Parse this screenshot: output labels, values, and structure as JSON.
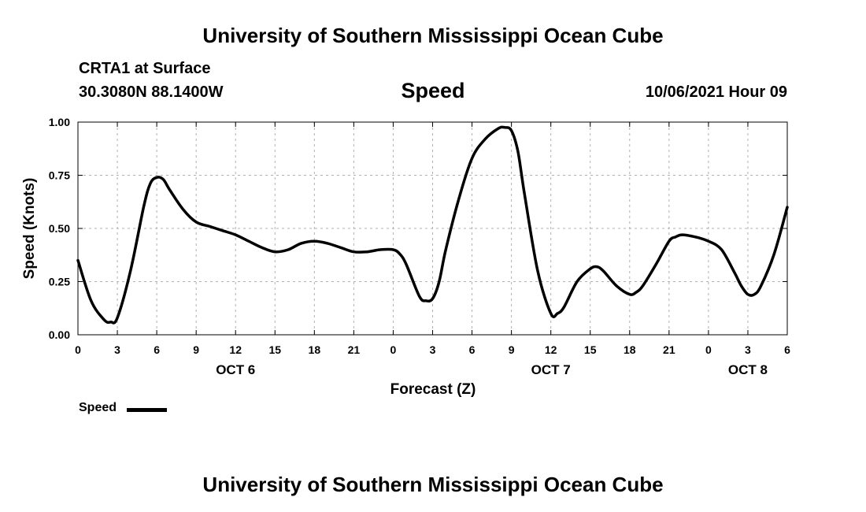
{
  "header": {
    "title": "University of Southern Mississippi Ocean Cube",
    "station": "CRTA1 at Surface",
    "coords": "30.3080N  88.1400W",
    "parameter": "Speed",
    "datetime": "10/06/2021 Hour 09"
  },
  "footer": {
    "title": "University of Southern Mississippi Ocean Cube"
  },
  "legend": {
    "label": "Speed"
  },
  "colors": {
    "line": "#000000",
    "grid": "#b0b0b0"
  },
  "chart_data": {
    "type": "line",
    "title": "Speed",
    "xlabel": "Forecast (Z)",
    "ylabel": "Speed (Knots)",
    "xlim": [
      0,
      54
    ],
    "ylim": [
      0,
      1
    ],
    "grid": true,
    "yticks": [
      {
        "value": 0,
        "label": "0.00"
      },
      {
        "value": 0.25,
        "label": "0.25"
      },
      {
        "value": 0.5,
        "label": "0.50"
      },
      {
        "value": 0.75,
        "label": "0.75"
      },
      {
        "value": 1,
        "label": "1.00"
      }
    ],
    "xticks": [
      {
        "value": 0,
        "label": "0"
      },
      {
        "value": 3,
        "label": "3"
      },
      {
        "value": 6,
        "label": "6"
      },
      {
        "value": 9,
        "label": "9"
      },
      {
        "value": 12,
        "label": "12"
      },
      {
        "value": 15,
        "label": "15"
      },
      {
        "value": 18,
        "label": "18"
      },
      {
        "value": 21,
        "label": "21"
      },
      {
        "value": 24,
        "label": "0"
      },
      {
        "value": 27,
        "label": "3"
      },
      {
        "value": 30,
        "label": "6"
      },
      {
        "value": 33,
        "label": "9"
      },
      {
        "value": 36,
        "label": "12"
      },
      {
        "value": 39,
        "label": "15"
      },
      {
        "value": 42,
        "label": "18"
      },
      {
        "value": 45,
        "label": "21"
      },
      {
        "value": 48,
        "label": "0"
      },
      {
        "value": 51,
        "label": "3"
      },
      {
        "value": 54,
        "label": "6"
      }
    ],
    "date_labels": [
      {
        "value": 12,
        "label": "OCT 6"
      },
      {
        "value": 36,
        "label": "OCT 7"
      },
      {
        "value": 51,
        "label": "OCT 8"
      }
    ],
    "series": [
      {
        "name": "Speed",
        "x": [
          0,
          1,
          2,
          2.5,
          3,
          4,
          5,
          5.5,
          6,
          6.5,
          7,
          8,
          9,
          10,
          11,
          12,
          13,
          14,
          15,
          16,
          17,
          18,
          19,
          20,
          21,
          22,
          23,
          24,
          24.5,
          25,
          26,
          26.5,
          27,
          27.5,
          28,
          29,
          30,
          31,
          32,
          32.5,
          33,
          33.5,
          34,
          35,
          36,
          36.5,
          37,
          38,
          39,
          39.5,
          40,
          41,
          42,
          42.5,
          43,
          44,
          45,
          45.5,
          46,
          47,
          48,
          49,
          50,
          50.5,
          51,
          51.5,
          52,
          53,
          54
        ],
        "values": [
          0.35,
          0.16,
          0.07,
          0.06,
          0.08,
          0.3,
          0.6,
          0.71,
          0.74,
          0.73,
          0.68,
          0.59,
          0.53,
          0.51,
          0.49,
          0.47,
          0.44,
          0.41,
          0.39,
          0.4,
          0.43,
          0.44,
          0.43,
          0.41,
          0.39,
          0.39,
          0.4,
          0.4,
          0.38,
          0.33,
          0.18,
          0.16,
          0.17,
          0.25,
          0.4,
          0.64,
          0.83,
          0.92,
          0.97,
          0.975,
          0.96,
          0.86,
          0.66,
          0.3,
          0.1,
          0.1,
          0.13,
          0.25,
          0.31,
          0.32,
          0.3,
          0.23,
          0.19,
          0.2,
          0.23,
          0.33,
          0.44,
          0.46,
          0.47,
          0.46,
          0.44,
          0.4,
          0.29,
          0.23,
          0.19,
          0.19,
          0.23,
          0.38,
          0.6
        ]
      }
    ]
  }
}
